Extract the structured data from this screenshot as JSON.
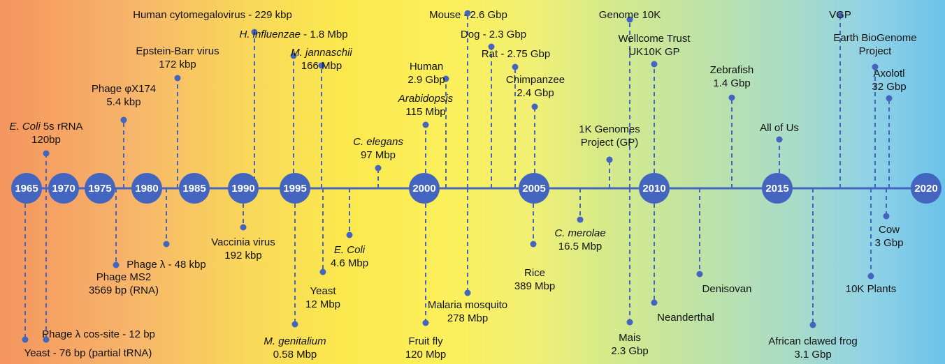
{
  "years": [
    "1965",
    "1970",
    "1975",
    "1980",
    "1985",
    "1990",
    "1995",
    "2000",
    "2005",
    "2010",
    "2015",
    "2020"
  ],
  "events": [
    {
      "name": "E. Coli 5s rRNA",
      "italic": "E. Coli",
      "rest": " 5s rRNA",
      "value": "120bp"
    },
    {
      "name": "Yeast - 76 bp (partial tRNA)"
    },
    {
      "name": "Phage λ cos-site - 12 bp"
    },
    {
      "name": "Phage MS2",
      "value": "3569 bp (RNA)"
    },
    {
      "name": "Phage φX174",
      "value": "5.4 kbp"
    },
    {
      "name": "Phage λ - 48 kbp"
    },
    {
      "name": "Epstein-Barr virus",
      "value": "172 kbp"
    },
    {
      "name": "Vaccinia virus",
      "value": "192 kbp"
    },
    {
      "name": "Human cytomegalovirus - 229 kbp"
    },
    {
      "name": "H. influenzae - 1.8 Mbp",
      "italic": "H. influenzae",
      "rest": " - 1.8 Mbp"
    },
    {
      "name": "M. genitalium",
      "italic": "M. genitalium",
      "value": "0.58 Mbp"
    },
    {
      "name": "M. jannaschii",
      "italic": "M. jannaschii",
      "value": "166 Mbp"
    },
    {
      "name": "Yeast",
      "value": "12 Mbp"
    },
    {
      "name": "E. Coli",
      "italic": "E. Coli",
      "value": "4.6 Mbp"
    },
    {
      "name": "C. elegans",
      "italic": "C. elegans",
      "value": "97 Mbp"
    },
    {
      "name": "Arabidopsis",
      "italic": "Arabidopsis",
      "value": "115 Mbp"
    },
    {
      "name": "Fruit fly",
      "value": "120 Mbp"
    },
    {
      "name": "Human",
      "value": "2.9 Gbp"
    },
    {
      "name": "Mouse - 2.6 Gbp"
    },
    {
      "name": "Malaria mosquito",
      "value": "278 Mbp"
    },
    {
      "name": "Dog - 2.3 Gbp"
    },
    {
      "name": "Rat - 2.75 Gbp"
    },
    {
      "name": "Chimpanzee",
      "value": "2.4 Gbp"
    },
    {
      "name": "Rice",
      "value": "389 Mbp"
    },
    {
      "name": "C. merolae",
      "italic": "C. merolae",
      "value": "16.5 Mbp"
    },
    {
      "name": "1K Genomes",
      "value": "Project (GP)"
    },
    {
      "name": "Genome 10K"
    },
    {
      "name": "Mais",
      "value": "2.3 Gbp"
    },
    {
      "name": "Wellcome Trust",
      "value": "UK10K GP"
    },
    {
      "name": "Neanderthal"
    },
    {
      "name": "Zebrafish",
      "value": "1.4 Gbp"
    },
    {
      "name": "Denisovan"
    },
    {
      "name": "All of Us"
    },
    {
      "name": "African clawed frog",
      "value": "3.1 Gbp"
    },
    {
      "name": "VGP"
    },
    {
      "name": "Earth BioGenome",
      "value": "Project"
    },
    {
      "name": "10K Plants"
    },
    {
      "name": "Axolotl",
      "value": "32 Gbp"
    },
    {
      "name": "Cow",
      "value": "3 Gbp"
    }
  ]
}
